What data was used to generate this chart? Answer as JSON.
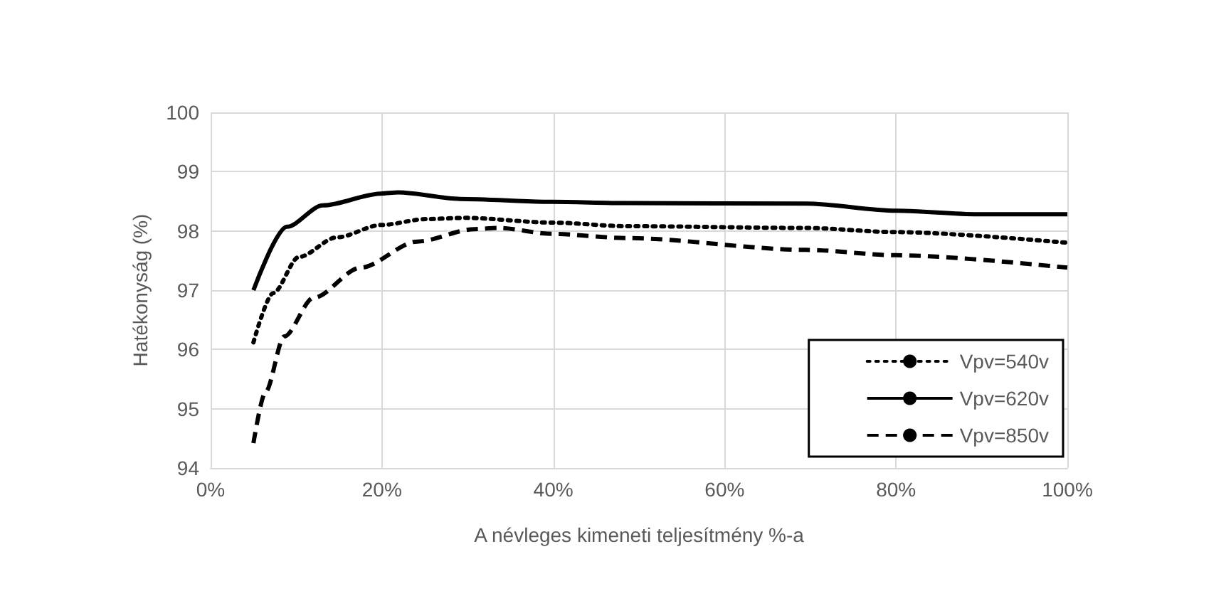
{
  "chart_data": {
    "type": "line",
    "xlabel": "A névleges kimeneti teljesítmény %-a",
    "ylabel": "Hatékonyság (%)",
    "xlim": [
      0,
      100
    ],
    "xticks": [
      {
        "value": 0,
        "label": "0%"
      },
      {
        "value": 20,
        "label": "20%"
      },
      {
        "value": 40,
        "label": "40%"
      },
      {
        "value": 60,
        "label": "60%"
      },
      {
        "value": 80,
        "label": "80%"
      },
      {
        "value": 100,
        "label": "100%"
      }
    ],
    "ylim": [
      94,
      100
    ],
    "yticks": [
      94,
      95,
      96,
      97,
      98,
      99,
      100
    ],
    "grid": true,
    "legend": "bottom right",
    "marker": "none",
    "series": [
      {
        "name": "Vpv=540v",
        "color": "#000000",
        "line_style": "dotted",
        "x": [
          5,
          7.3,
          10.3,
          14.7,
          19.9,
          25.2,
          29.7,
          39.9,
          48.5,
          69.5,
          80,
          100
        ],
        "values": [
          96.12,
          96.95,
          97.56,
          97.89,
          98.1,
          98.2,
          98.22,
          98.14,
          98.08,
          98.05,
          97.98,
          97.8
        ]
      },
      {
        "name": "Vpv=620v",
        "color": "#000000",
        "line_style": "solid",
        "x": [
          5,
          8.9,
          13.1,
          19.9,
          21.9,
          29.1,
          39.9,
          48.5,
          69.5,
          80,
          89.5,
          100
        ],
        "values": [
          97.0,
          98.07,
          98.43,
          98.63,
          98.65,
          98.54,
          98.49,
          98.47,
          98.46,
          98.34,
          98.28,
          98.28
        ]
      },
      {
        "name": "Vpv=850v",
        "color": "#000000",
        "line_style": "dashed",
        "x": [
          5,
          6.4,
          8.6,
          12,
          17.5,
          24.1,
          30.8,
          33.6,
          39.9,
          48.5,
          69.5,
          80,
          100
        ],
        "values": [
          94.42,
          95.28,
          96.22,
          96.87,
          97.38,
          97.82,
          98.03,
          98.05,
          97.95,
          97.88,
          97.68,
          97.59,
          97.38
        ]
      }
    ]
  }
}
